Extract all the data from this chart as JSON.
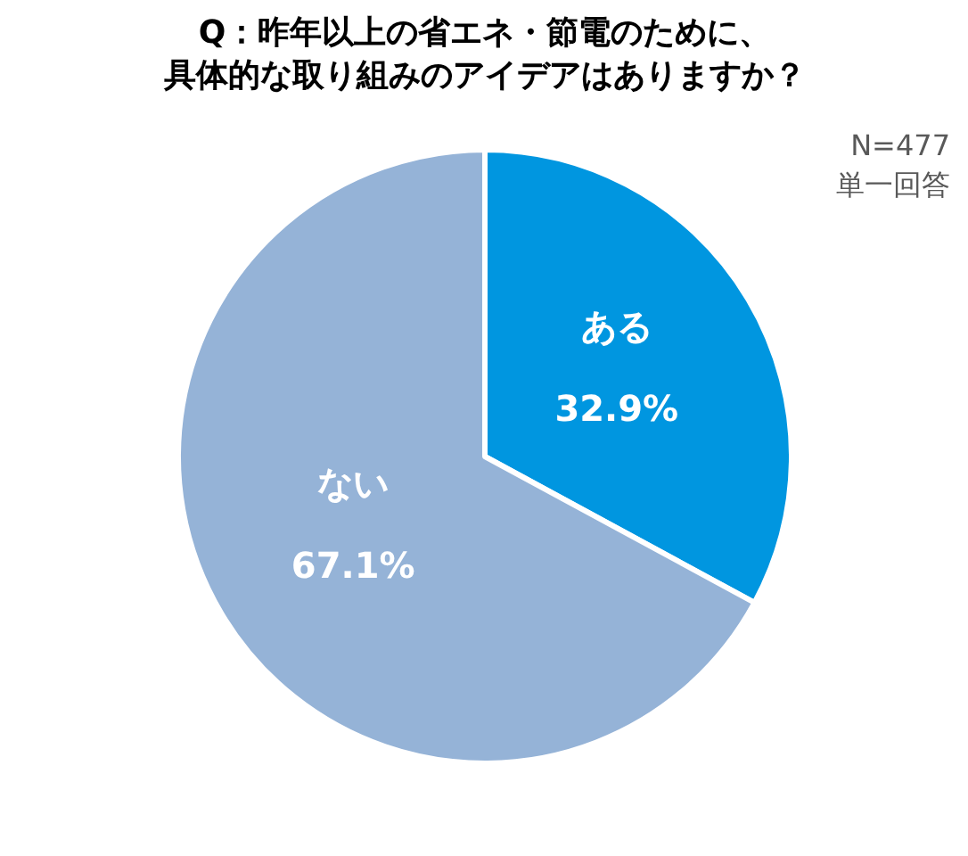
{
  "chart_data": {
    "type": "pie",
    "title": "Q：昨年以上の省エネ・節電のために、",
    "subtitle": "具体的な取り組みのアイデアはありますか？",
    "categories": [
      "ある",
      "ない"
    ],
    "values": [
      32.9,
      67.1
    ],
    "colors": [
      "#0096e0",
      "#95b3d7"
    ],
    "value_labels": [
      "32.9%",
      "67.1%"
    ],
    "annotations": [
      "N=477",
      "単一回答"
    ],
    "legend": false
  }
}
